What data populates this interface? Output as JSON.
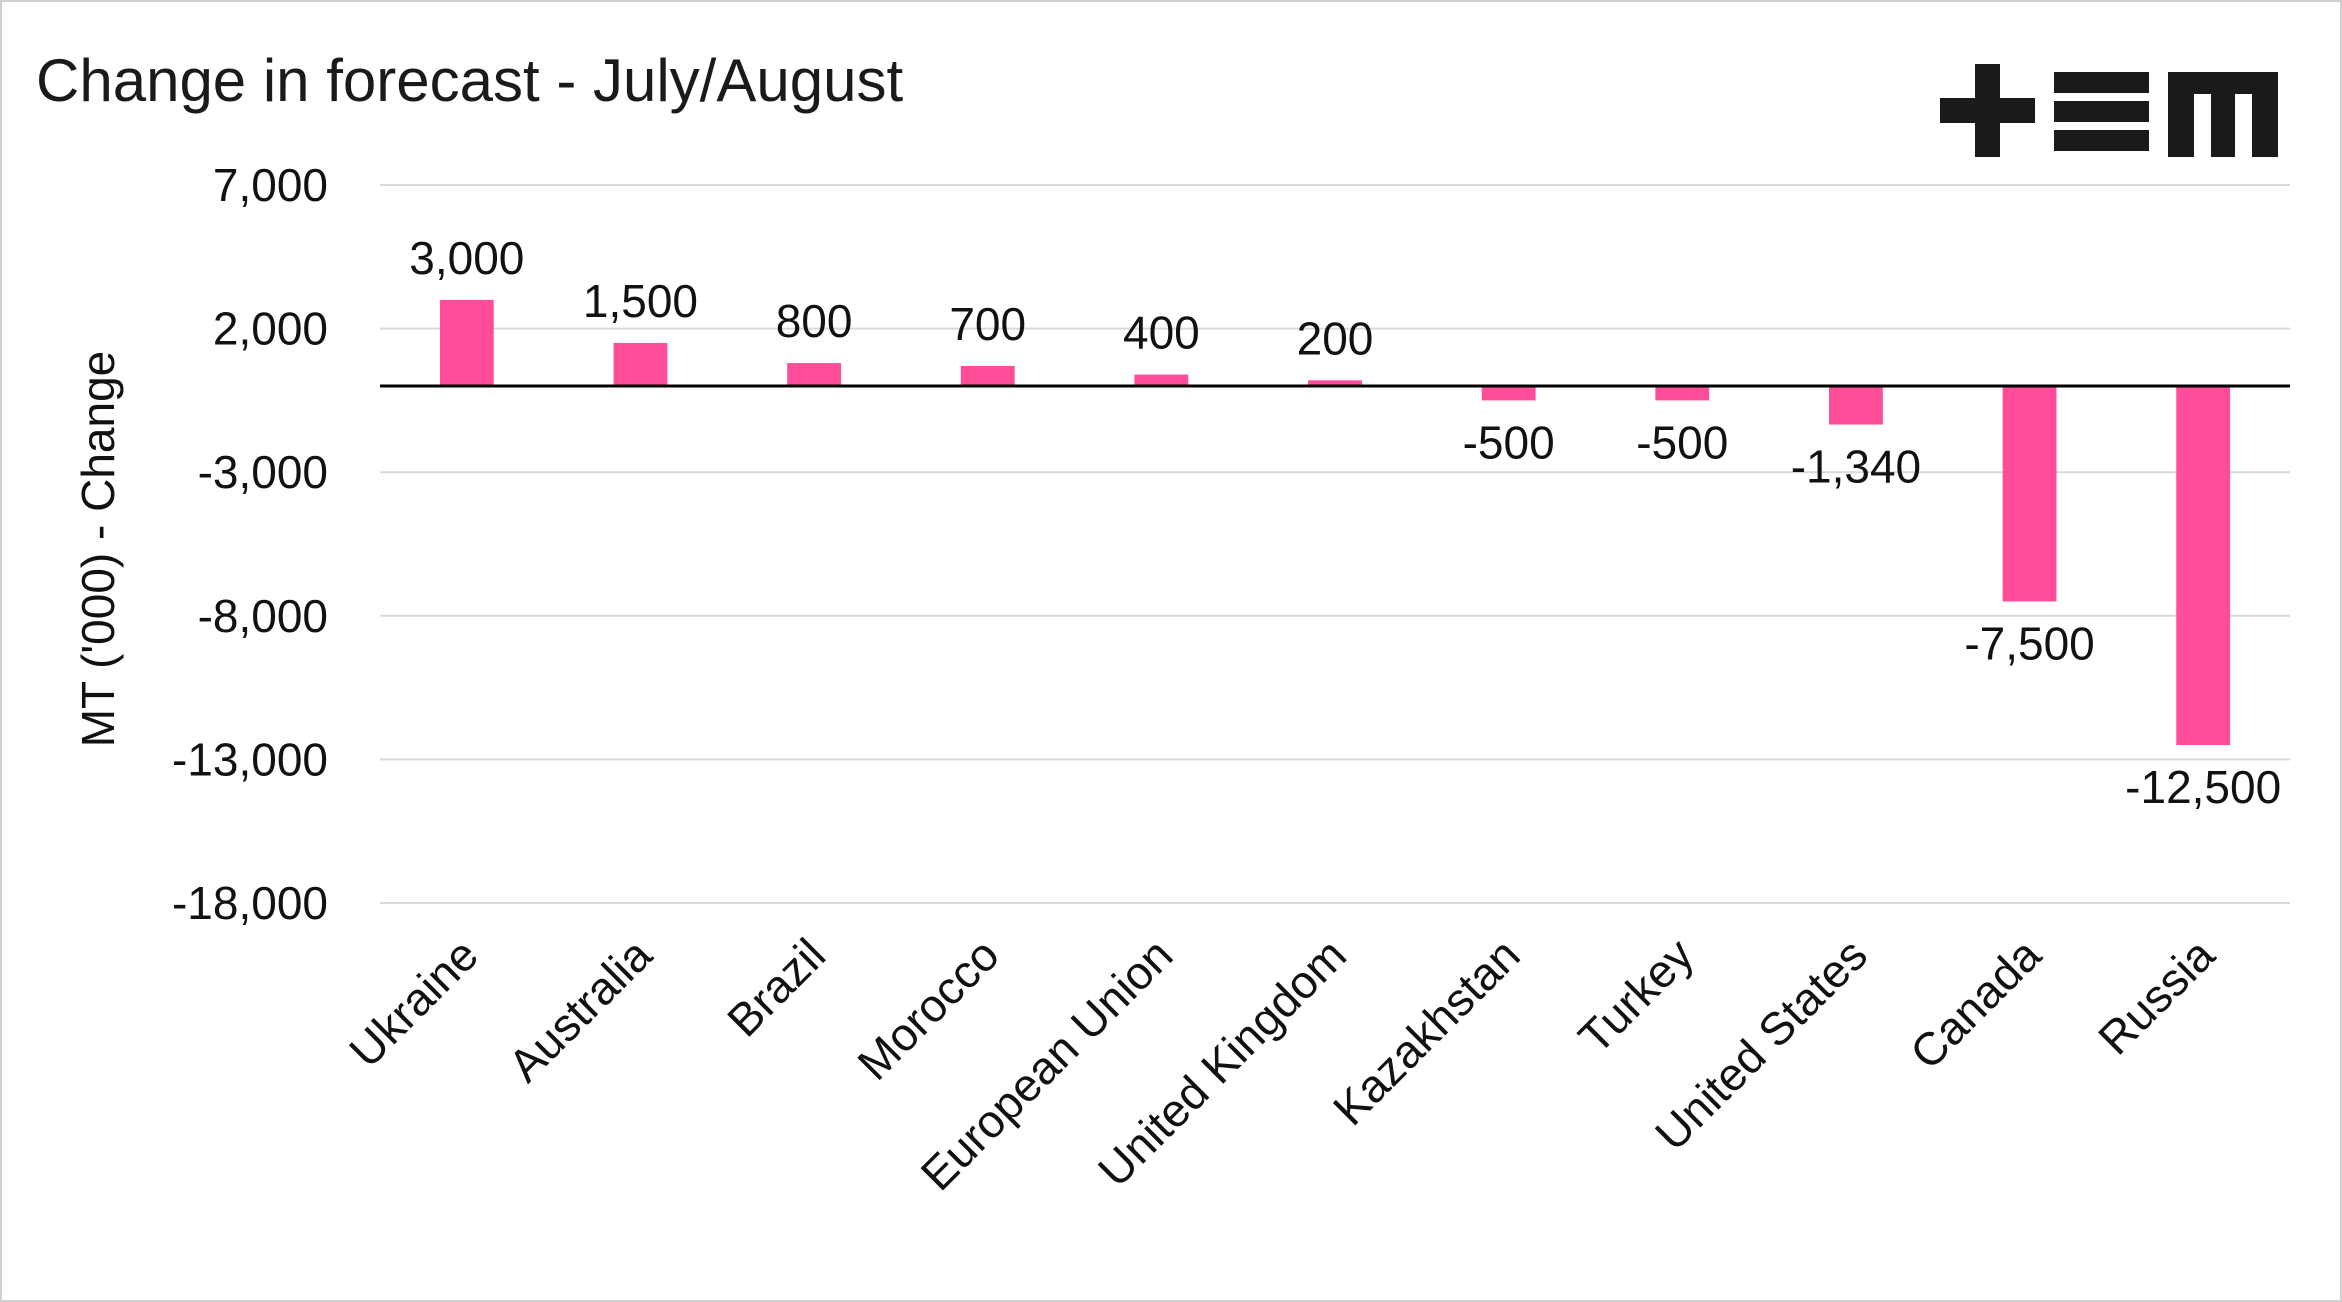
{
  "chart_data": {
    "type": "bar",
    "title": "Change in forecast - July/August",
    "ylabel": "MT ('000) - Change",
    "xlabel": "",
    "ylim": [
      -18000,
      7000
    ],
    "yticks": [
      7000,
      2000,
      -3000,
      -8000,
      -13000,
      -18000
    ],
    "ytick_labels": [
      "7,000",
      "2,000",
      "-3,000",
      "-8,000",
      "-13,000",
      "-18,000"
    ],
    "categories": [
      "Ukraine",
      "Australia",
      "Brazil",
      "Morocco",
      "European Union",
      "United Kingdom",
      "Kazakhstan",
      "Turkey",
      "United States",
      "Canada",
      "Russia"
    ],
    "values": [
      3000,
      1500,
      800,
      700,
      400,
      200,
      -500,
      -500,
      -1340,
      -7500,
      -12500
    ],
    "data_labels": [
      "3,000",
      "1,500",
      "800",
      "700",
      "400",
      "200",
      "-500",
      "-500",
      "-1,340",
      "-7,500",
      "-12,500"
    ],
    "bar_color": "#ff4d9a",
    "grid": true,
    "legend": "none"
  },
  "logo": {
    "name": "tem-logo",
    "text": "+EM"
  }
}
